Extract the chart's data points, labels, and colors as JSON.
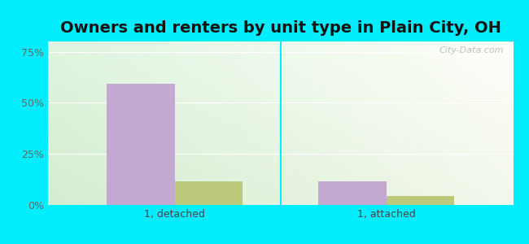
{
  "title": "Owners and renters by unit type in Plain City, OH",
  "categories": [
    "1, detached",
    "1, attached"
  ],
  "owner_values": [
    0.595,
    0.115
  ],
  "renter_values": [
    0.115,
    0.045
  ],
  "owner_color": "#c3a8d1",
  "renter_color": "#bcc87a",
  "bar_width": 0.32,
  "ylim": [
    0,
    0.8
  ],
  "yticks": [
    0.0,
    0.25,
    0.5,
    0.75
  ],
  "ytick_labels": [
    "0%",
    "25%",
    "50%",
    "75%"
  ],
  "outer_bg": "#00eeff",
  "title_fontsize": 14,
  "watermark": "City-Data.com"
}
